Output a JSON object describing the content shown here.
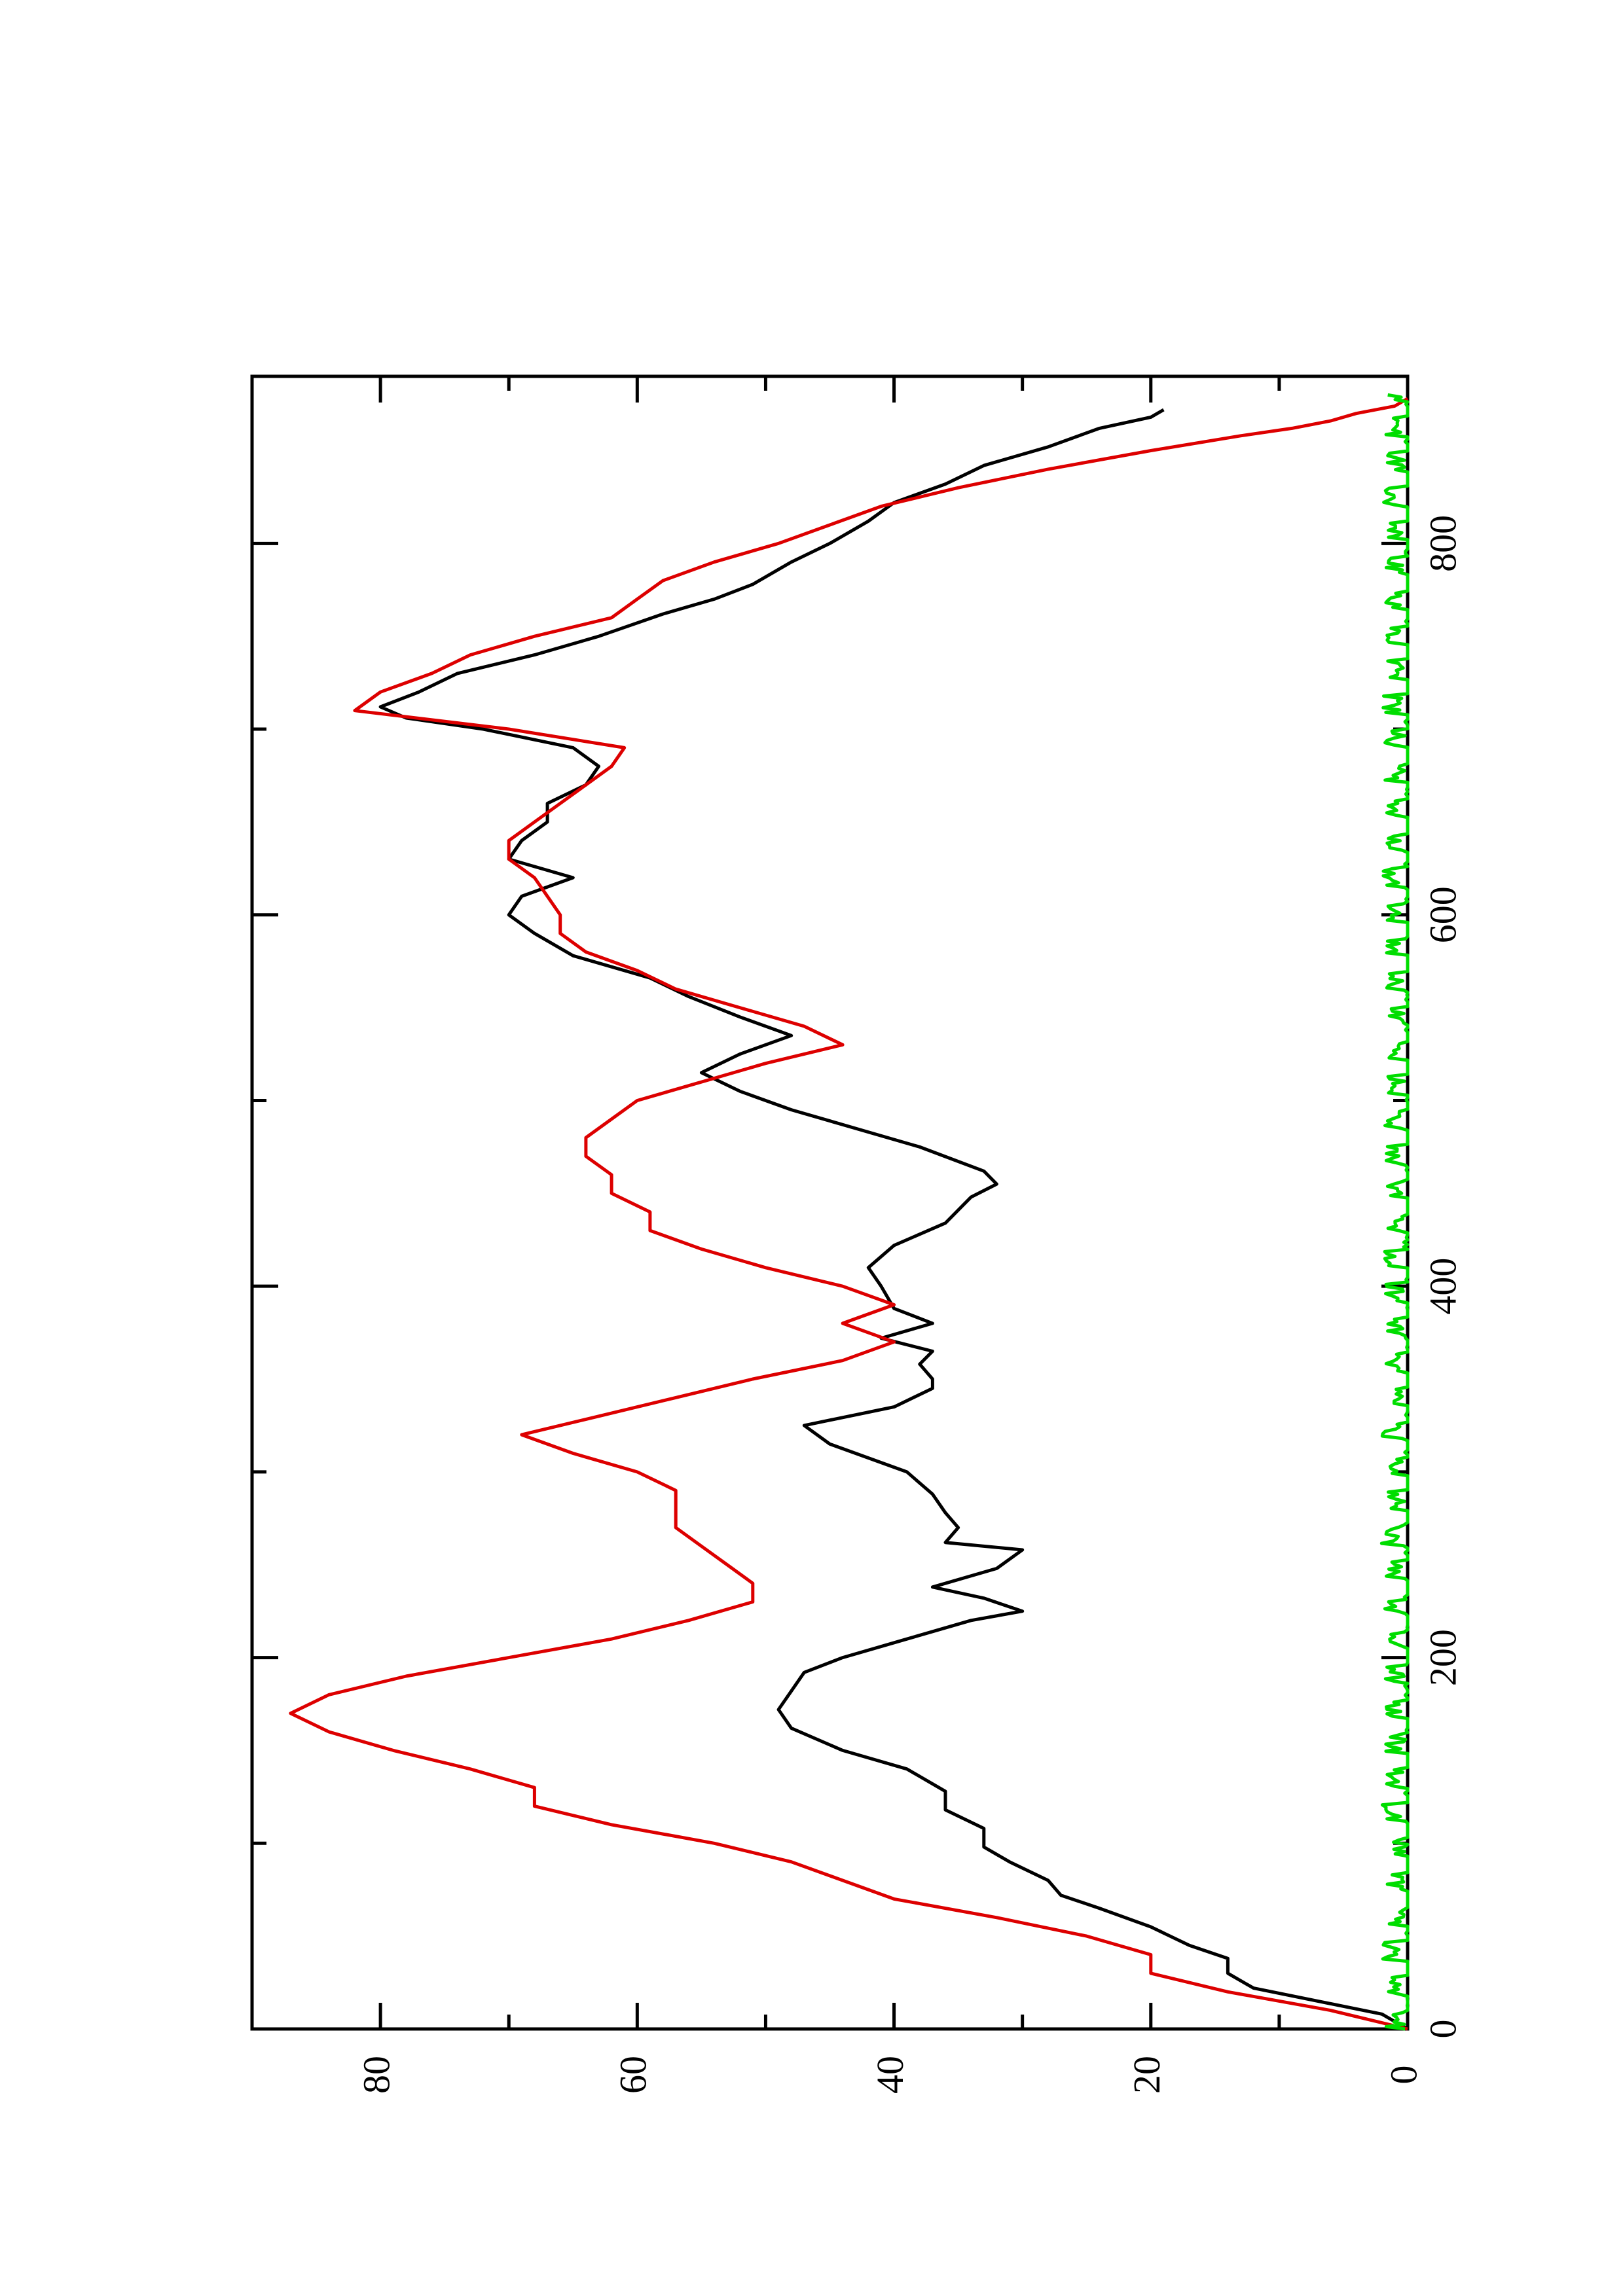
{
  "chart_data": {
    "type": "line",
    "orientation": "rotated 90° counter-clockwise (x axis runs along the right edge, y axis along the bottom edge)",
    "title": "",
    "xlabel": "",
    "ylabel": "",
    "xlim": [
      0,
      890
    ],
    "ylim": [
      0,
      90
    ],
    "x_ticks": [
      0,
      200,
      400,
      600,
      800
    ],
    "x_minor_ticks": [
      100,
      300,
      500,
      700
    ],
    "y_ticks": [
      0,
      20,
      40,
      60,
      80
    ],
    "y_minor_ticks": [
      10,
      30,
      50,
      70
    ],
    "x_tick_labels": [
      "0",
      "200",
      "400",
      "600",
      "800"
    ],
    "y_tick_labels": [
      "0",
      "20",
      "40",
      "60",
      "80"
    ],
    "grid": false,
    "legend": "none",
    "series": [
      {
        "color": "#000000",
        "style": "solid",
        "points": [
          [
            0,
            0
          ],
          [
            8,
            2
          ],
          [
            15,
            7
          ],
          [
            22,
            12
          ],
          [
            30,
            14
          ],
          [
            38,
            14
          ],
          [
            45,
            17
          ],
          [
            55,
            20
          ],
          [
            65,
            24
          ],
          [
            72,
            27
          ],
          [
            80,
            28
          ],
          [
            90,
            31
          ],
          [
            98,
            33
          ],
          [
            108,
            33
          ],
          [
            118,
            36
          ],
          [
            128,
            36
          ],
          [
            140,
            39
          ],
          [
            150,
            44
          ],
          [
            162,
            48
          ],
          [
            172,
            49
          ],
          [
            182,
            48
          ],
          [
            192,
            47
          ],
          [
            200,
            44
          ],
          [
            210,
            39
          ],
          [
            220,
            34
          ],
          [
            225,
            30
          ],
          [
            232,
            33
          ],
          [
            238,
            37
          ],
          [
            248,
            32
          ],
          [
            258,
            30
          ],
          [
            262,
            36
          ],
          [
            270,
            35
          ],
          [
            278,
            36
          ],
          [
            288,
            37
          ],
          [
            300,
            39
          ],
          [
            315,
            45
          ],
          [
            325,
            47
          ],
          [
            335,
            40
          ],
          [
            345,
            37
          ],
          [
            350,
            37
          ],
          [
            358,
            38
          ],
          [
            365,
            37
          ],
          [
            372,
            41
          ],
          [
            380,
            37
          ],
          [
            388,
            40
          ],
          [
            400,
            41
          ],
          [
            410,
            42
          ],
          [
            422,
            40
          ],
          [
            434,
            36
          ],
          [
            448,
            34
          ],
          [
            455,
            32
          ],
          [
            462,
            33
          ],
          [
            475,
            38
          ],
          [
            485,
            43
          ],
          [
            495,
            48
          ],
          [
            505,
            52
          ],
          [
            515,
            55
          ],
          [
            525,
            52
          ],
          [
            535,
            48
          ],
          [
            545,
            52
          ],
          [
            556,
            56
          ],
          [
            566,
            59
          ],
          [
            578,
            65
          ],
          [
            590,
            68
          ],
          [
            600,
            70
          ],
          [
            610,
            69
          ],
          [
            620,
            65
          ],
          [
            630,
            70
          ],
          [
            640,
            69
          ],
          [
            650,
            67
          ],
          [
            660,
            67
          ],
          [
            670,
            64
          ],
          [
            680,
            63
          ],
          [
            690,
            65
          ],
          [
            700,
            72
          ],
          [
            706,
            78
          ],
          [
            712,
            80
          ],
          [
            720,
            77
          ],
          [
            730,
            74
          ],
          [
            740,
            68
          ],
          [
            750,
            63
          ],
          [
            762,
            58
          ],
          [
            770,
            54
          ],
          [
            778,
            51
          ],
          [
            790,
            48
          ],
          [
            800,
            45
          ],
          [
            812,
            42
          ],
          [
            822,
            40
          ],
          [
            832,
            36
          ],
          [
            842,
            33
          ],
          [
            852,
            28
          ],
          [
            862,
            24
          ],
          [
            868,
            20
          ],
          [
            872,
            19
          ]
        ]
      },
      {
        "color": "#dd0000",
        "style": "solid",
        "points": [
          [
            0,
            0
          ],
          [
            10,
            6
          ],
          [
            20,
            14
          ],
          [
            30,
            20
          ],
          [
            40,
            20
          ],
          [
            50,
            25
          ],
          [
            60,
            32
          ],
          [
            70,
            40
          ],
          [
            80,
            44
          ],
          [
            90,
            48
          ],
          [
            100,
            54
          ],
          [
            110,
            62
          ],
          [
            120,
            68
          ],
          [
            130,
            68
          ],
          [
            140,
            73
          ],
          [
            150,
            79
          ],
          [
            160,
            84
          ],
          [
            170,
            87
          ],
          [
            180,
            84
          ],
          [
            190,
            78
          ],
          [
            200,
            70
          ],
          [
            210,
            62
          ],
          [
            220,
            56
          ],
          [
            230,
            51
          ],
          [
            240,
            51
          ],
          [
            250,
            53
          ],
          [
            260,
            55
          ],
          [
            270,
            57
          ],
          [
            280,
            57
          ],
          [
            290,
            57
          ],
          [
            300,
            60
          ],
          [
            310,
            65
          ],
          [
            320,
            69
          ],
          [
            330,
            63
          ],
          [
            340,
            57
          ],
          [
            350,
            51
          ],
          [
            360,
            44
          ],
          [
            370,
            40
          ],
          [
            380,
            44
          ],
          [
            390,
            40
          ],
          [
            400,
            44
          ],
          [
            410,
            50
          ],
          [
            420,
            55
          ],
          [
            430,
            59
          ],
          [
            440,
            59
          ],
          [
            450,
            62
          ],
          [
            460,
            62
          ],
          [
            470,
            64
          ],
          [
            480,
            64
          ],
          [
            490,
            62
          ],
          [
            500,
            60
          ],
          [
            510,
            55
          ],
          [
            520,
            50
          ],
          [
            530,
            44
          ],
          [
            540,
            47
          ],
          [
            550,
            52
          ],
          [
            560,
            57
          ],
          [
            570,
            60
          ],
          [
            580,
            64
          ],
          [
            590,
            66
          ],
          [
            600,
            66
          ],
          [
            610,
            67
          ],
          [
            620,
            68
          ],
          [
            630,
            70
          ],
          [
            640,
            70
          ],
          [
            650,
            68
          ],
          [
            660,
            66
          ],
          [
            670,
            64
          ],
          [
            680,
            62
          ],
          [
            690,
            61
          ],
          [
            700,
            70
          ],
          [
            710,
            82
          ],
          [
            720,
            80
          ],
          [
            730,
            76
          ],
          [
            740,
            73
          ],
          [
            750,
            68
          ],
          [
            760,
            62
          ],
          [
            770,
            60
          ],
          [
            780,
            58
          ],
          [
            790,
            54
          ],
          [
            800,
            49
          ],
          [
            810,
            45
          ],
          [
            820,
            41
          ],
          [
            830,
            35
          ],
          [
            840,
            28
          ],
          [
            850,
            20
          ],
          [
            858,
            13
          ],
          [
            862,
            9
          ],
          [
            866,
            6
          ],
          [
            870,
            4
          ],
          [
            874,
            1
          ],
          [
            878,
            0
          ]
        ]
      },
      {
        "color": "#00dd00",
        "style": "solid",
        "noise_band": true,
        "points": [
          [
            0,
            1
          ],
          [
            20,
            0.8
          ],
          [
            40,
            1.2
          ],
          [
            60,
            0.9
          ],
          [
            80,
            1.1
          ],
          [
            100,
            0.7
          ],
          [
            120,
            1.3
          ],
          [
            140,
            0.8
          ],
          [
            160,
            1
          ],
          [
            180,
            1.2
          ],
          [
            200,
            0.9
          ],
          [
            220,
            1.1
          ],
          [
            240,
            0.8
          ],
          [
            260,
            1.3
          ],
          [
            280,
            0.9
          ],
          [
            300,
            1
          ],
          [
            320,
            1.2
          ],
          [
            340,
            0.8
          ],
          [
            360,
            1.1
          ],
          [
            380,
            0.9
          ],
          [
            400,
            1
          ],
          [
            420,
            1.2
          ],
          [
            440,
            0.8
          ],
          [
            460,
            1.1
          ],
          [
            480,
            0.9
          ],
          [
            500,
            1.2
          ],
          [
            520,
            0.8
          ],
          [
            540,
            1
          ],
          [
            560,
            1.1
          ],
          [
            580,
            0.9
          ],
          [
            600,
            1
          ],
          [
            620,
            1.2
          ],
          [
            640,
            0.8
          ],
          [
            660,
            1.1
          ],
          [
            680,
            0.9
          ],
          [
            700,
            1
          ],
          [
            720,
            1.2
          ],
          [
            740,
            0.8
          ],
          [
            760,
            1.1
          ],
          [
            780,
            0.9
          ],
          [
            800,
            1
          ],
          [
            820,
            1.2
          ],
          [
            840,
            0.8
          ],
          [
            860,
            1.1
          ],
          [
            880,
            0.9
          ]
        ]
      }
    ]
  }
}
